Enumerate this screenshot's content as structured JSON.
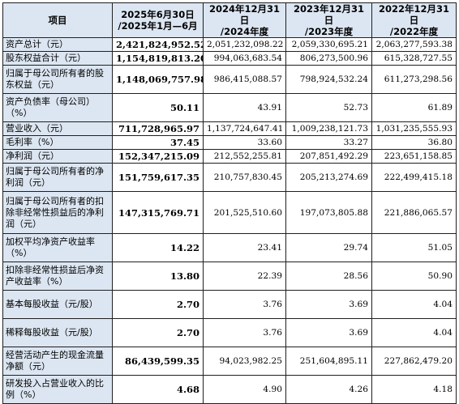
{
  "table": {
    "headers": [
      {
        "lines": [
          "项目"
        ]
      },
      {
        "lines": [
          "2025年6月30日",
          "/2025年1月—6月"
        ]
      },
      {
        "lines": [
          "2024年12月31日",
          "/2024年度"
        ]
      },
      {
        "lines": [
          "2023年12月31日",
          "/2023年度"
        ]
      },
      {
        "lines": [
          "2022年12月31日",
          "/2022年度"
        ]
      }
    ],
    "rows": [
      {
        "label": "资产总计（元）",
        "values": [
          "2,421,824,952.52",
          "2,051,232,098.22",
          "2,059,330,695.21",
          "2,063,277,593.38"
        ]
      },
      {
        "label": "股东权益合计（元）",
        "values": [
          "1,154,819,813.20",
          "994,063,683.54",
          "806,273,500.96",
          "615,328,727.55"
        ]
      },
      {
        "label": "归属于母公司所有者的股东权益（元）",
        "values": [
          "1,148,069,757.98",
          "986,415,088.57",
          "798,924,532.24",
          "611,273,298.56"
        ]
      },
      {
        "label": "资产负债率（母公司）（%）",
        "values": [
          "50.11",
          "43.91",
          "52.73",
          "61.89"
        ]
      },
      {
        "label": "营业收入（元）",
        "values": [
          "711,728,965.97",
          "1,137,724,647.41",
          "1,009,238,121.73",
          "1,031,235,555.93"
        ]
      },
      {
        "label": "毛利率（%）",
        "values": [
          "37.45",
          "33.60",
          "33.27",
          "36.80"
        ]
      },
      {
        "label": "净利润（元）",
        "values": [
          "152,347,215.09",
          "212,552,255.81",
          "207,851,492.29",
          "223,651,158.85"
        ]
      },
      {
        "label": "归属于母公司所有者的净利润（元）",
        "values": [
          "151,759,617.35",
          "210,757,830.45",
          "205,213,274.69",
          "222,499,415.18"
        ]
      },
      {
        "label": "归属于母公司所有者的扣除非经常性损益后的净利润（元）",
        "values": [
          "147,315,769.71",
          "201,525,510.60",
          "197,073,805.88",
          "221,886,065.57"
        ]
      },
      {
        "label": "加权平均净资产收益率（%）",
        "values": [
          "14.22",
          "23.41",
          "29.74",
          "51.05"
        ]
      },
      {
        "label": "扣除非经常性损益后净资产收益率（%）",
        "values": [
          "13.80",
          "22.39",
          "28.56",
          "50.90"
        ]
      },
      {
        "label": "基本每股收益（元/股）",
        "values": [
          "2.70",
          "3.76",
          "3.69",
          "4.04"
        ]
      },
      {
        "label": "稀释每股收益（元/股）",
        "values": [
          "2.70",
          "3.76",
          "3.69",
          "4.04"
        ]
      },
      {
        "label": "经营活动产生的现金流量净额（元）",
        "values": [
          "86,439,599.35",
          "94,023,982.25",
          "251,604,895.11",
          "227,862,479.20"
        ]
      },
      {
        "label": "研发投入占营业收入的比例（%）",
        "values": [
          "4.68",
          "4.90",
          "4.26",
          "4.18"
        ]
      }
    ]
  }
}
